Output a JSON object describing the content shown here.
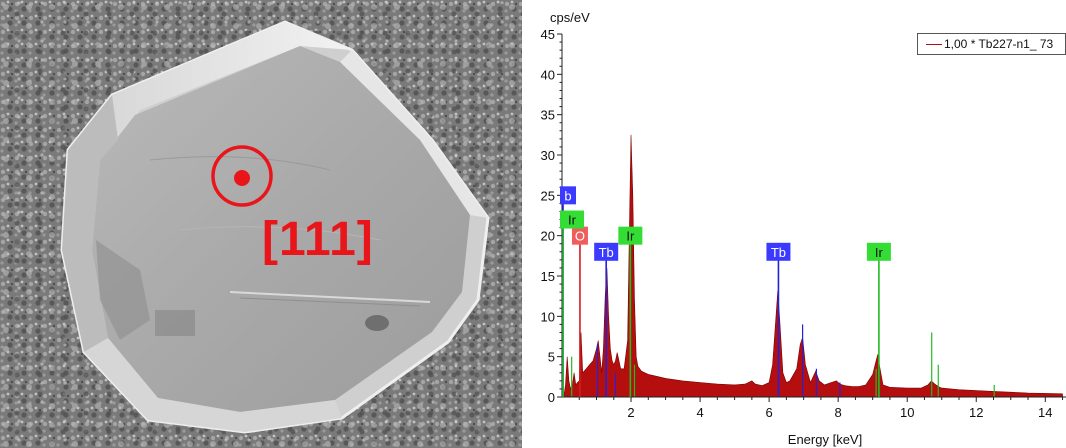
{
  "sem_image": {
    "orientation_label": "[111]",
    "marker_color": "#e8161b"
  },
  "chart_data": {
    "type": "area",
    "ylabel_top": "cps/eV",
    "xlabel": "Energy [keV]",
    "xlim": [
      0,
      14.6
    ],
    "ylim": [
      0,
      45
    ],
    "xticks": [
      2,
      4,
      6,
      8,
      10,
      12,
      14
    ],
    "yticks": [
      0,
      5,
      10,
      15,
      20,
      25,
      30,
      35,
      40,
      45
    ],
    "legend": "1,00 * Tb227-n1_ 73",
    "legend_position": "top-right",
    "series_color": "#b50e0e",
    "spectrum": {
      "x": [
        0.05,
        0.1,
        0.15,
        0.2,
        0.25,
        0.3,
        0.35,
        0.4,
        0.45,
        0.5,
        0.52,
        0.55,
        0.6,
        0.7,
        0.8,
        0.9,
        1.0,
        1.05,
        1.1,
        1.15,
        1.2,
        1.25,
        1.3,
        1.35,
        1.4,
        1.45,
        1.5,
        1.55,
        1.6,
        1.7,
        1.8,
        1.9,
        1.95,
        2.0,
        2.05,
        2.1,
        2.15,
        2.2,
        2.3,
        2.4,
        2.5,
        2.6,
        2.8,
        3.0,
        3.5,
        4.0,
        4.5,
        5.0,
        5.3,
        5.5,
        5.6,
        5.8,
        6.0,
        6.1,
        6.2,
        6.25,
        6.3,
        6.4,
        6.5,
        6.6,
        6.8,
        6.9,
        6.97,
        7.05,
        7.2,
        7.35,
        7.45,
        7.6,
        7.8,
        7.95,
        8.05,
        8.2,
        8.4,
        8.6,
        8.8,
        9.0,
        9.1,
        9.15,
        9.2,
        9.3,
        9.5,
        10.0,
        10.4,
        10.6,
        10.7,
        10.8,
        10.9,
        11.0,
        11.5,
        12.0,
        12.5,
        13.0,
        13.5,
        14.0,
        14.5
      ],
      "y": [
        0,
        1.5,
        5,
        2,
        1,
        1.5,
        3,
        1.5,
        1.8,
        2,
        6,
        8,
        3,
        3.5,
        4,
        4.5,
        6,
        7,
        5,
        3,
        6,
        12.5,
        16,
        10,
        6,
        4.5,
        4,
        4.5,
        5.5,
        3.5,
        3.5,
        7,
        20,
        32.5,
        25,
        12,
        5,
        3.8,
        3.2,
        3,
        2.8,
        2.7,
        2.5,
        2.3,
        2,
        1.8,
        1.6,
        1.5,
        1.6,
        2,
        1.6,
        1.4,
        1.8,
        4,
        10,
        13.2,
        10,
        3,
        1.8,
        2,
        3.5,
        6.5,
        7.4,
        4,
        1.8,
        3.2,
        2,
        1.5,
        1.8,
        2,
        1.6,
        1.4,
        1.3,
        1.3,
        1.5,
        2.8,
        4.5,
        5.3,
        3.8,
        1.5,
        1.2,
        1.1,
        1.1,
        1.5,
        2,
        1.6,
        1.3,
        1.1,
        0.9,
        0.8,
        0.7,
        0.6,
        0.5,
        0.45,
        0.4
      ]
    },
    "element_markers": [
      {
        "label": "O",
        "energy": 0.52,
        "box_color": "#f15c5c",
        "line_color": "#d61c1c",
        "line_height": 20
      },
      {
        "label": "Tb",
        "energy": 1.28,
        "box_color": "#3b3bff",
        "line_color": "#2222dd",
        "line_height": 18
      },
      {
        "label": "Ir",
        "energy": 1.98,
        "box_color": "#33dd33",
        "line_color": "#22bb22",
        "line_height": 20
      },
      {
        "label": "Tb",
        "energy": 6.27,
        "box_color": "#3b3bff",
        "line_color": "#2222dd",
        "line_height": 18
      },
      {
        "label": "Ir",
        "energy": 9.18,
        "box_color": "#33dd33",
        "line_color": "#22bb22",
        "line_height": 18
      },
      {
        "label": "b",
        "energy": 0.05,
        "box_color": "#3b3bff",
        "line_color": "#2222dd",
        "line_height": 25,
        "edge": true
      },
      {
        "label": "Ir",
        "energy": 0.05,
        "box_color": "#33dd33",
        "line_color": "#22bb22",
        "line_height": 22,
        "edge": true
      }
    ],
    "minor_lines": [
      {
        "energy": 0.28,
        "height": 5,
        "color": "#22bb22"
      },
      {
        "energy": 1.03,
        "height": 6.5,
        "color": "#2222dd"
      },
      {
        "energy": 2.1,
        "height": 4,
        "color": "#22bb22"
      },
      {
        "energy": 6.97,
        "height": 9,
        "color": "#2222dd"
      },
      {
        "energy": 7.37,
        "height": 3.5,
        "color": "#2222dd"
      },
      {
        "energy": 8.05,
        "height": 1.8,
        "color": "#2222dd"
      },
      {
        "energy": 10.71,
        "height": 8,
        "color": "#22bb22"
      },
      {
        "energy": 10.9,
        "height": 4,
        "color": "#22bb22"
      },
      {
        "energy": 12.52,
        "height": 1.5,
        "color": "#22bb22"
      },
      {
        "energy": 9.1,
        "height": 3.5,
        "color": "#22bb22"
      },
      {
        "energy": 1.55,
        "height": 3,
        "color": "#2222dd"
      }
    ]
  }
}
